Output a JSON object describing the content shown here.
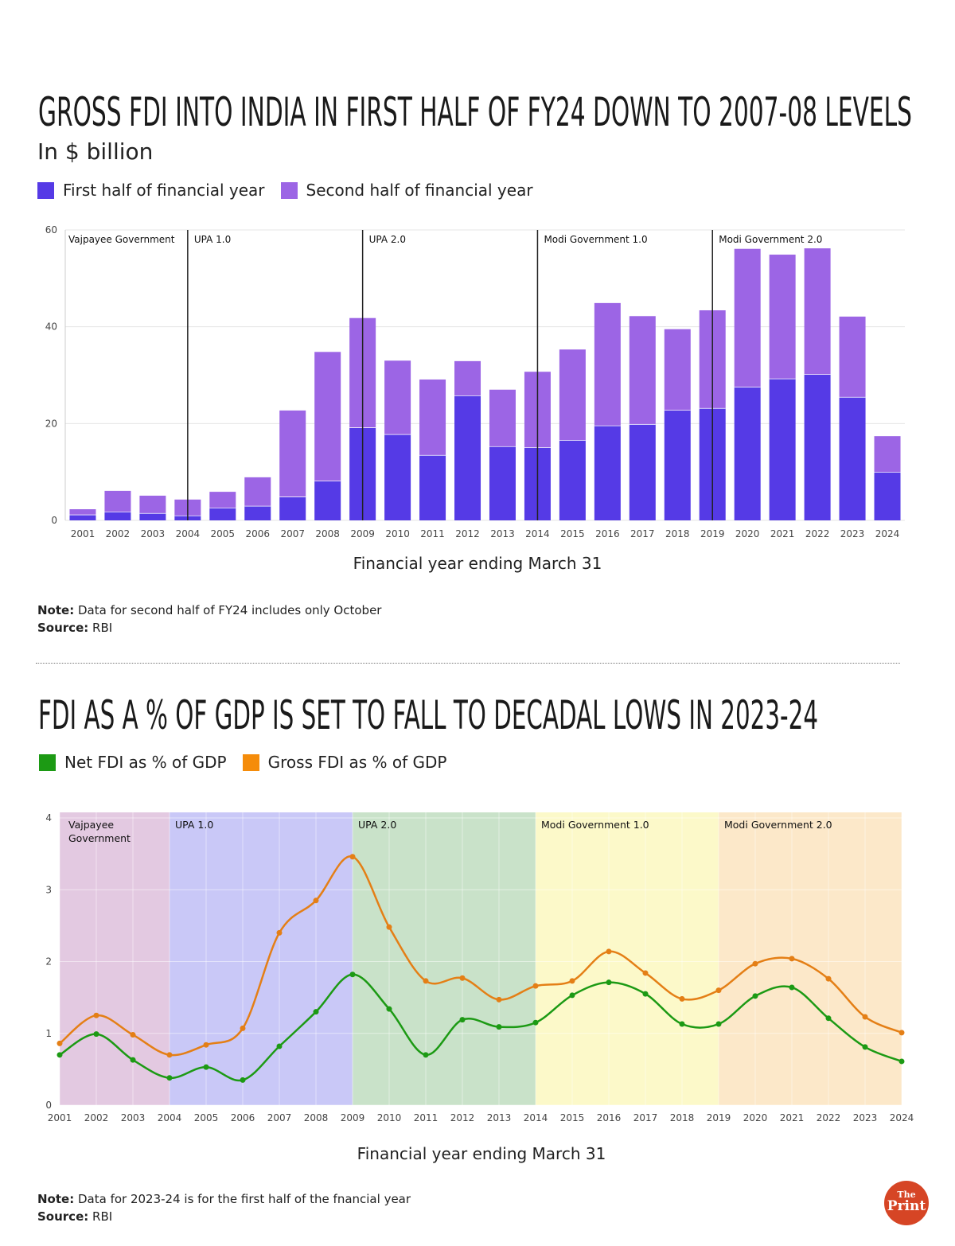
{
  "logo": {
    "text_top": "The",
    "text_bottom": "Print"
  },
  "chart_data": [
    {
      "type": "bar",
      "stacked": true,
      "title": "GROSS FDI INTO INDIA IN FIRST HALF OF FY24 DOWN TO 2007-08 LEVELS",
      "subtitle": "In $ billion",
      "xlabel": "Financial year ending March 31",
      "ylabel": "",
      "ylim": [
        0,
        60
      ],
      "yticks": [
        0,
        20,
        40,
        60
      ],
      "grid": true,
      "legend_position": "top-left",
      "categories": [
        "2001",
        "2002",
        "2003",
        "2004",
        "2005",
        "2006",
        "2007",
        "2008",
        "2009",
        "2010",
        "2011",
        "2012",
        "2013",
        "2014",
        "2015",
        "2016",
        "2017",
        "2018",
        "2019",
        "2020",
        "2021",
        "2022",
        "2023",
        "2024"
      ],
      "series": [
        {
          "name": "First half of financial year",
          "color": "#553ae6",
          "values": [
            1.2,
            1.8,
            1.5,
            1.0,
            2.6,
            3.0,
            4.9,
            8.2,
            19.2,
            17.8,
            13.5,
            25.8,
            15.3,
            15.1,
            16.6,
            19.6,
            19.9,
            22.8,
            23.2,
            27.6,
            29.3,
            30.2,
            25.5,
            10.0
          ]
        },
        {
          "name": "Second half of financial year",
          "color": "#9c65e5",
          "values": [
            1.1,
            4.3,
            3.6,
            3.3,
            3.3,
            5.9,
            17.8,
            26.6,
            22.6,
            15.2,
            15.6,
            7.1,
            11.7,
            15.6,
            18.7,
            25.3,
            22.3,
            16.7,
            20.2,
            28.5,
            25.6,
            26.0,
            16.6,
            7.4
          ]
        }
      ],
      "annotations": [
        {
          "label": "Vajpayee Government",
          "at": "2001"
        },
        {
          "label": "UPA 1.0",
          "at": "2004"
        },
        {
          "label": "UPA 2.0",
          "at": "2009"
        },
        {
          "label": "Modi Government 1.0",
          "at": "2014"
        },
        {
          "label": "Modi Government 2.0",
          "at": "2019"
        }
      ],
      "note_label": "Note:",
      "note": "Data for second half of FY24 includes only October",
      "source_label": "Source:",
      "source": "RBI"
    },
    {
      "type": "line",
      "title": "FDI AS A % OF GDP IS SET TO FALL TO DECADAL LOWS IN 2023-24",
      "xlabel": "Financial year ending March 31",
      "ylabel": "",
      "ylim": [
        0,
        4
      ],
      "yticks": [
        0,
        1,
        2,
        3,
        4
      ],
      "grid": true,
      "legend_position": "top-left",
      "x": [
        "2001",
        "2002",
        "2003",
        "2004",
        "2005",
        "2006",
        "2007",
        "2008",
        "2009",
        "2010",
        "2011",
        "2012",
        "2013",
        "2014",
        "2015",
        "2016",
        "2017",
        "2018",
        "2019",
        "2020",
        "2021",
        "2022",
        "2023",
        "2024"
      ],
      "series": [
        {
          "name": "Net FDI as % of GDP",
          "color": "#1c9a14",
          "values": [
            0.7,
            0.99,
            0.63,
            0.38,
            0.53,
            0.35,
            0.82,
            1.3,
            1.82,
            1.34,
            0.7,
            1.19,
            1.09,
            1.15,
            1.53,
            1.71,
            1.55,
            1.13,
            1.13,
            1.52,
            1.64,
            1.21,
            0.81,
            0.61
          ]
        },
        {
          "name": "Gross FDI as % of GDP",
          "color": "#f58c0a",
          "values": [
            0.86,
            1.25,
            0.98,
            0.7,
            0.84,
            1.07,
            2.4,
            2.85,
            3.46,
            2.48,
            1.73,
            1.77,
            1.47,
            1.66,
            1.73,
            2.14,
            1.84,
            1.48,
            1.6,
            1.97,
            2.04,
            1.76,
            1.23,
            1.01
          ]
        }
      ],
      "bands": [
        {
          "label": "Vajpayee Government",
          "from": "2001",
          "to": "2004",
          "color": "#e3c9e1"
        },
        {
          "label": "UPA 1.0",
          "from": "2004",
          "to": "2009",
          "color": "#c9c8f7"
        },
        {
          "label": "UPA 2.0",
          "from": "2009",
          "to": "2014",
          "color": "#c9e2c9"
        },
        {
          "label": "Modi Government 1.0",
          "from": "2014",
          "to": "2019",
          "color": "#fcf9c9"
        },
        {
          "label": "Modi Government 2.0",
          "from": "2019",
          "to": "2024",
          "color": "#fce8c9"
        }
      ],
      "note_label": "Note:",
      "note": "Data for 2023-24 is for the first half of the fnancial year",
      "source_label": "Source:",
      "source": "RBI"
    }
  ]
}
